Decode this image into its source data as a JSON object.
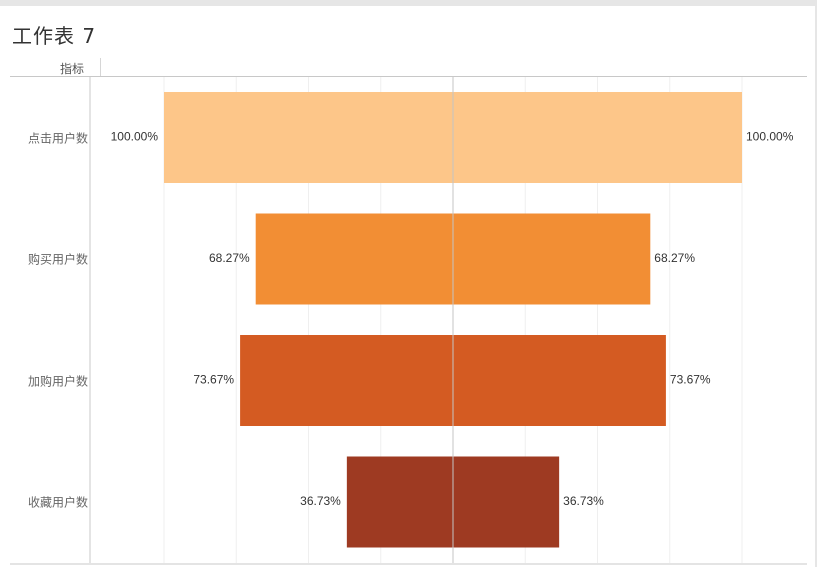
{
  "sheet": {
    "title": "工作表 7"
  },
  "dimension_header": "指标",
  "colors": {
    "grid": "#efefef",
    "center_line": "#c4c4c4",
    "axis_line": "#c8c8c8"
  },
  "chart_data": {
    "type": "bar",
    "orientation": "horizontal",
    "layout": "funnel-mirrored",
    "categories": [
      "点击用户数",
      "购买用户数",
      "加购用户数",
      "收藏用户数"
    ],
    "series": [
      {
        "values": [
          100.0,
          68.27,
          73.67,
          36.73
        ],
        "labels": [
          "100.00%",
          "68.27%",
          "73.67%",
          "36.73%"
        ],
        "colors": [
          "#fdc689",
          "#f28e34",
          "#d45b22",
          "#9e3a22"
        ]
      }
    ],
    "unit": "%",
    "xlim": [
      -125,
      125
    ],
    "grid": true,
    "legend": "none"
  }
}
